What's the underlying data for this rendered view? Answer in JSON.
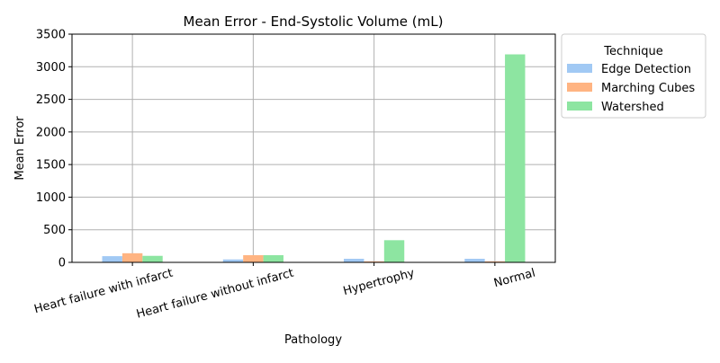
{
  "chart_data": {
    "type": "bar",
    "title": "Mean Error - End-Systolic Volume (mL)",
    "xlabel": "Pathology",
    "ylabel": "Mean Error",
    "categories": [
      "Heart failure with infarct",
      "Heart failure without infarct",
      "Hypertrophy",
      "Normal"
    ],
    "series": [
      {
        "name": "Edge Detection",
        "color": "#a1c9f4",
        "values": [
          95,
          45,
          55,
          55
        ]
      },
      {
        "name": "Marching Cubes",
        "color": "#ffb482",
        "values": [
          140,
          110,
          15,
          15
        ]
      },
      {
        "name": "Watershed",
        "color": "#8de5a1",
        "values": [
          100,
          110,
          340,
          3190
        ]
      }
    ],
    "ylim": [
      0,
      3500
    ],
    "yticks": [
      0,
      500,
      1000,
      1500,
      2000,
      2500,
      3000,
      3500
    ],
    "grid": true,
    "legend": {
      "title": "Technique",
      "placement": "outside upper-right"
    },
    "xtick_rotation_deg": 15
  }
}
